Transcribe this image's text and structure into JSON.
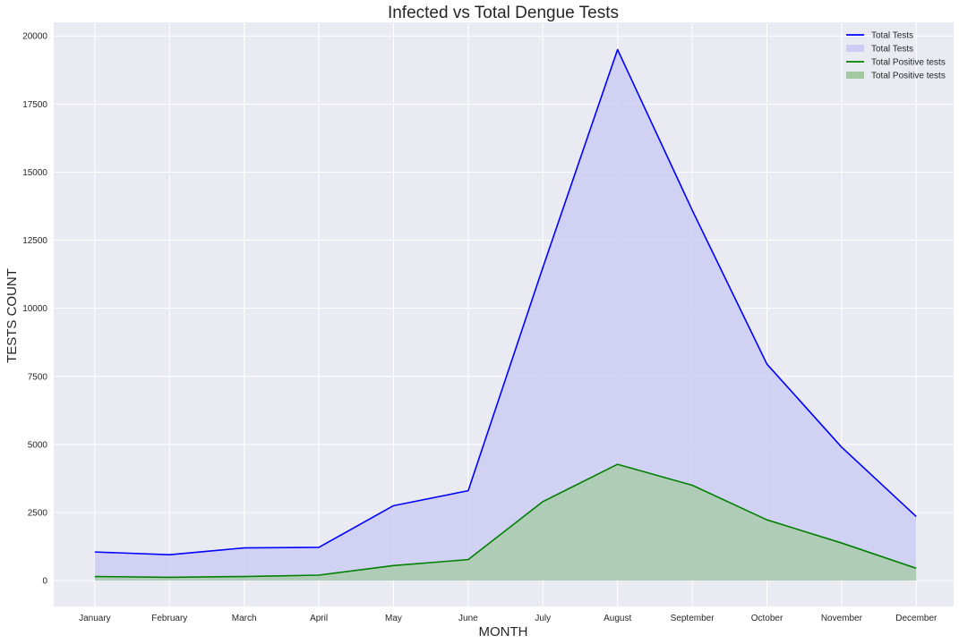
{
  "chart_data": {
    "type": "area",
    "title": "Infected vs Total Dengue Tests",
    "xlabel": "MONTH",
    "ylabel": "TESTS COUNT",
    "categories": [
      "January",
      "February",
      "March",
      "April",
      "May",
      "June",
      "July",
      "August",
      "September",
      "October",
      "November",
      "December"
    ],
    "yticks": [
      0,
      2500,
      5000,
      7500,
      10000,
      12500,
      15000,
      17500,
      20000
    ],
    "ytick_labels": [
      "0",
      "2500",
      "5000",
      "7500",
      "10000",
      "12500",
      "15000",
      "17500",
      "20000"
    ],
    "ylim": [
      -950,
      20500
    ],
    "grid": true,
    "legend_position": "top-right",
    "series": [
      {
        "name": "Total Tests",
        "values": [
          1050,
          950,
          1200,
          1220,
          2750,
          3300,
          11500,
          19500,
          13600,
          7950,
          4900,
          2350
        ],
        "line_color": "#0000ff",
        "fill_color": "#ccccf5"
      },
      {
        "name": "Total Positive tests",
        "values": [
          150,
          120,
          150,
          200,
          550,
          770,
          2900,
          4270,
          3500,
          2230,
          1380,
          450
        ],
        "line_color": "#008000",
        "fill_color": "#a3c9a3"
      }
    ],
    "legend": [
      {
        "label": "Total Tests",
        "kind": "line",
        "series": 0
      },
      {
        "label": "Total Tests",
        "kind": "patch",
        "series": 0
      },
      {
        "label": "Total Positive tests",
        "kind": "line",
        "series": 1
      },
      {
        "label": "Total Positive tests",
        "kind": "patch",
        "series": 1
      }
    ],
    "colors": {
      "plot_background": "#eaeaf2",
      "grid": "#ffffff",
      "text": "#262626"
    }
  }
}
